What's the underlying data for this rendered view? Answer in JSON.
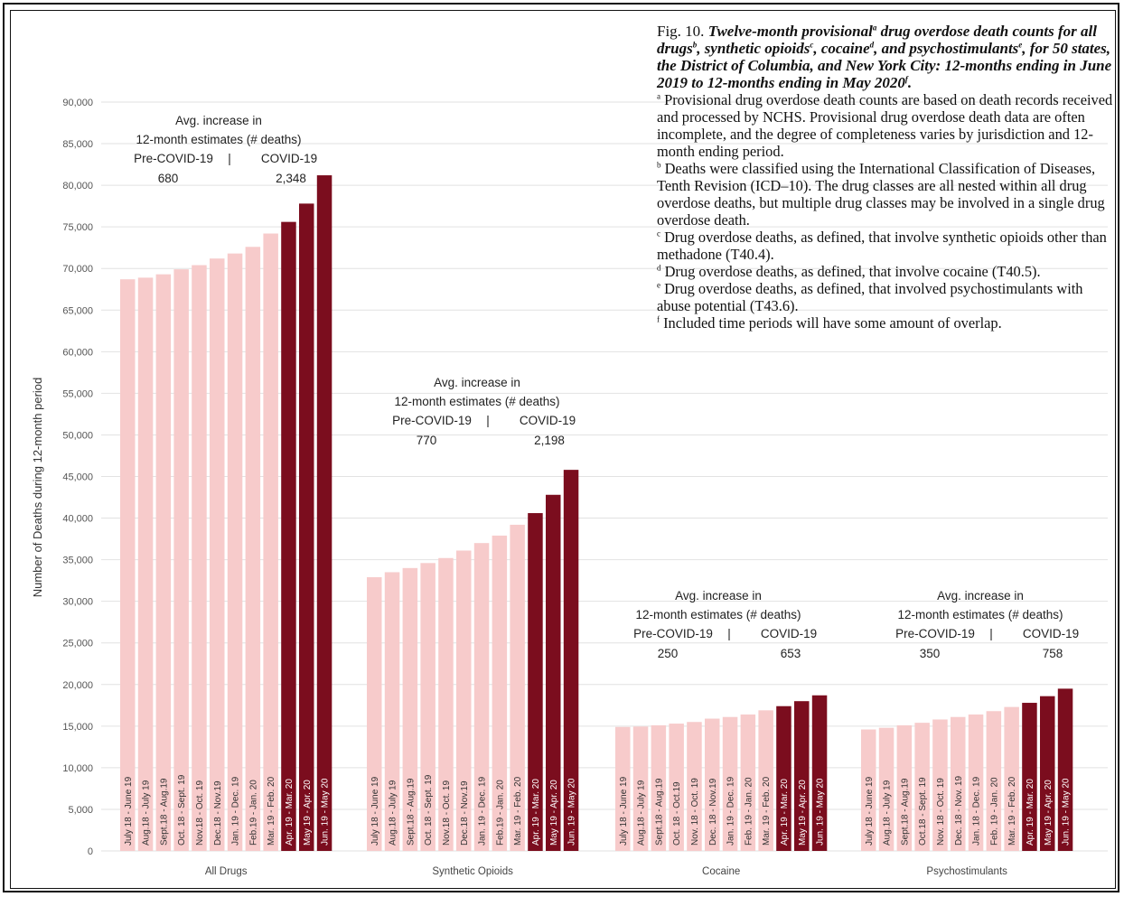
{
  "caption": {
    "fig_num": "Fig. 10.",
    "title_parts": [
      {
        "text": " Twelve-month provisional"
      },
      {
        "sup": "a"
      },
      {
        "text": " drug overdose death counts for all drugs"
      },
      {
        "sup": "b"
      },
      {
        "text": ", synthetic opioids"
      },
      {
        "sup": "c"
      },
      {
        "text": ", cocaine"
      },
      {
        "sup": "d"
      },
      {
        "text": ", and psychostimulants"
      },
      {
        "sup": "e"
      },
      {
        "text": ", for 50 states, the District of Columbia, and New York City: 12-months ending in June 2019 to 12-months ending in May 2020"
      },
      {
        "sup": "f"
      },
      {
        "text": "."
      }
    ],
    "footnotes": [
      {
        "mark": "a",
        "text": "Provisional drug overdose death counts are based on death records received and processed by NCHS. Provisional drug overdose death data are often incomplete, and the degree of completeness varies by jurisdiction and 12-month ending period."
      },
      {
        "mark": "b",
        "text": "Deaths were classified using the International Classification of Diseases, Tenth Revision (ICD–10). The drug classes are all nested within all drug overdose deaths, but multiple drug classes may be involved in a single drug overdose death."
      },
      {
        "mark": "c",
        "text": "Drug overdose deaths, as defined, that involve synthetic opioids other than methadone (T40.4)."
      },
      {
        "mark": "d",
        "text": "Drug overdose deaths, as defined, that involve cocaine (T40.5)."
      },
      {
        "mark": "e",
        "text": "Drug overdose deaths, as defined, that involved psychostimulants with abuse potential (T43.6)."
      },
      {
        "mark": "f",
        "text": "Included time periods will have some amount of overlap."
      }
    ]
  },
  "chart_data": {
    "type": "bar",
    "ylabel": "Number of Deaths during 12-month period",
    "ylim": [
      0,
      90000
    ],
    "yticks": [
      0,
      5000,
      10000,
      15000,
      20000,
      25000,
      30000,
      35000,
      40000,
      45000,
      50000,
      55000,
      60000,
      65000,
      70000,
      75000,
      80000,
      85000,
      90000
    ],
    "ytick_labels": [
      "0",
      "5,000",
      "10,000",
      "15,000",
      "20,000",
      "25,000",
      "30,000",
      "35,000",
      "40,000",
      "45,000",
      "50,000",
      "55,000",
      "60,000",
      "65,000",
      "70,000",
      "75,000",
      "80,000",
      "85,000",
      "90,000"
    ],
    "grid": true,
    "colors": {
      "pre_covid": "#f7cbcb",
      "covid": "#7b0d1e",
      "grid": "#e2e2e2"
    },
    "groups": [
      {
        "name": "All Drugs",
        "periods": [
          "July 18 - June 19",
          "Aug.18 - July 19",
          "Sept.18 - Aug.19",
          "Oct. 18 - Sept. 19",
          "Nov.18 - Oct. 19",
          "Dec.18 - Nov.19",
          "Jan. 19 - Dec. 19",
          "Feb.19 - Jan. 20",
          "Mar. 19 - Feb. 20",
          "Apr. 19 - Mar. 20",
          "May 19 - Apr. 20",
          "Jun. 19 - May 20"
        ],
        "values": [
          68700,
          68900,
          69300,
          69900,
          70400,
          71200,
          71800,
          72600,
          74200,
          75600,
          77800,
          81200
        ],
        "covid_flags": [
          false,
          false,
          false,
          false,
          false,
          false,
          false,
          false,
          false,
          true,
          true,
          true
        ],
        "annotation": {
          "line1": "Avg. increase in",
          "line2": "12-month estimates (# deaths)",
          "pre_label": "Pre-COVID-19",
          "sep": "|",
          "covid_label": "COVID-19",
          "pre_value": "680",
          "covid_value": "2,348"
        }
      },
      {
        "name": "Synthetic Opioids",
        "periods": [
          "July 18 - June 19",
          "Aug.18 - July 19",
          "Sept.18 - Aug.19",
          "Oct. 18 - Sept. 19",
          "Nov.18 - Oct. 19",
          "Dec.18 - Nov.19",
          "Jan. 19 - Dec. 19",
          "Feb.19 - Jan. 20",
          "Mar. 19 - Feb. 20",
          "Apr. 19 - Mar. 20",
          "May 19 - Apr. 20",
          "Jun. 19 - May 20"
        ],
        "values": [
          32900,
          33500,
          34000,
          34600,
          35200,
          36100,
          37000,
          37900,
          39200,
          40600,
          42800,
          45800
        ],
        "covid_flags": [
          false,
          false,
          false,
          false,
          false,
          false,
          false,
          false,
          false,
          true,
          true,
          true
        ],
        "annotation": {
          "line1": "Avg. increase in",
          "line2": "12-month estimates (# deaths)",
          "pre_label": "Pre-COVID-19",
          "sep": "|",
          "covid_label": "COVID-19",
          "pre_value": "770",
          "covid_value": "2,198"
        }
      },
      {
        "name": "Cocaine",
        "periods": [
          "July 18 - June 19",
          "Aug.18 - July 19",
          "Sept.18 - Aug.19",
          "Oct. 18 - Oct.19",
          "Nov. 18 - Oct. 19",
          "Dec. 18 - Nov.19",
          "Jan. 19 - Dec. 19",
          "Feb. 19 - Jan. 20",
          "Mar. 19 - Feb. 20",
          "Apr. 19 - Mar. 20",
          "May 19 - Apr. 20",
          "Jun. 19 - May 20"
        ],
        "values": [
          14900,
          14950,
          15100,
          15300,
          15500,
          15900,
          16100,
          16400,
          16900,
          17400,
          18000,
          18700
        ],
        "covid_flags": [
          false,
          false,
          false,
          false,
          false,
          false,
          false,
          false,
          false,
          true,
          true,
          true
        ],
        "annotation": {
          "line1": "Avg. increase in",
          "line2": "12-month estimates (# deaths)",
          "pre_label": "Pre-COVID-19",
          "sep": "|",
          "covid_label": "COVID-19",
          "pre_value": "250",
          "covid_value": "653"
        }
      },
      {
        "name": "Psychostimulants",
        "periods": [
          "July 18 - June 19",
          "Aug.18 - July 19",
          "Sept.18 - Aug.19",
          "Oct.18 - Sept. 19",
          "Nov. 18 - Oct. 19",
          "Dec. 18 - Nov. 19",
          "Jan. 18 - Dec. 19",
          "Feb. 19 - Jan. 20",
          "Mar. 19 - Feb. 20",
          "Apr. 19 - Mar. 20",
          "May 19 - Apr. 20",
          "Jun. 19 - May 20"
        ],
        "values": [
          14600,
          14800,
          15100,
          15400,
          15800,
          16100,
          16400,
          16800,
          17300,
          17800,
          18600,
          19500
        ],
        "covid_flags": [
          false,
          false,
          false,
          false,
          false,
          false,
          false,
          false,
          false,
          true,
          true,
          true
        ],
        "annotation": {
          "line1": "Avg. increase in",
          "line2": "12-month estimates (# deaths)",
          "pre_label": "Pre-COVID-19",
          "sep": "|",
          "covid_label": "COVID-19",
          "pre_value": "350",
          "covid_value": "758"
        }
      }
    ]
  }
}
